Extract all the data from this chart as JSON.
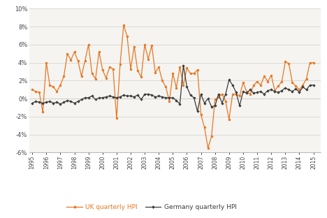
{
  "uk_hpi": [
    1.0,
    0.8,
    0.7,
    -1.5,
    4.0,
    1.5,
    1.3,
    0.8,
    1.5,
    2.5,
    5.0,
    4.3,
    5.2,
    4.2,
    2.5,
    4.2,
    6.0,
    2.8,
    2.2,
    5.2,
    3.2,
    2.3,
    3.5,
    3.3,
    -2.2,
    3.8,
    8.2,
    6.9,
    3.3,
    5.8,
    3.1,
    2.4,
    6.0,
    4.4,
    5.9,
    2.9,
    3.5,
    2.0,
    1.3,
    -0.3,
    2.8,
    1.2,
    3.5,
    1.5,
    3.4,
    2.8,
    2.8,
    3.2,
    -1.8,
    -3.2,
    -5.5,
    -4.2,
    -0.1,
    0.2,
    0.5,
    -0.3,
    -2.3,
    0.5,
    0.5,
    0.3,
    1.8,
    0.8,
    0.5,
    1.5,
    1.9,
    1.5,
    2.5,
    1.9,
    2.6,
    0.9,
    1.4,
    1.9,
    4.1,
    3.9,
    1.8,
    1.4,
    1.0,
    1.5,
    2.2,
    4.0,
    4.0
  ],
  "de_hpi": [
    -0.5,
    -0.3,
    -0.4,
    -0.5,
    -0.4,
    -0.3,
    -0.5,
    -0.4,
    -0.6,
    -0.4,
    -0.2,
    -0.3,
    -0.5,
    -0.3,
    -0.1,
    0.1,
    0.1,
    0.3,
    -0.1,
    0.1,
    0.1,
    0.2,
    0.3,
    0.2,
    0.1,
    0.2,
    0.4,
    0.3,
    0.3,
    0.2,
    0.4,
    -0.1,
    0.5,
    0.5,
    0.4,
    0.2,
    0.3,
    0.2,
    0.1,
    0.1,
    0.1,
    -0.2,
    -0.6,
    3.7,
    1.3,
    0.4,
    0.1,
    -1.4,
    0.5,
    -0.5,
    0.0,
    -0.9,
    -0.8,
    0.5,
    -0.5,
    0.5,
    2.1,
    1.5,
    0.7,
    -0.8,
    0.8,
    0.6,
    1.0,
    0.6,
    0.7,
    0.8,
    0.5,
    0.9,
    1.0,
    0.8,
    0.7,
    0.9,
    1.2,
    1.0,
    0.8,
    1.1,
    0.7,
    1.3,
    1.0,
    1.5,
    1.5
  ],
  "x_start": 1995.0,
  "x_step": 0.25,
  "x_ticks": [
    1995,
    1996,
    1997,
    1998,
    1999,
    2000,
    2001,
    2002,
    2003,
    2004,
    2005,
    2006,
    2007,
    2008,
    2009,
    2010,
    2011,
    2012,
    2013,
    2014,
    2015
  ],
  "ylim": [
    -6,
    10
  ],
  "yticks": [
    -6,
    -4,
    -2,
    0,
    2,
    4,
    6,
    8,
    10
  ],
  "uk_color": "#E87722",
  "de_color": "#3a3a3a",
  "uk_label": "UK quarterly HPI",
  "de_label": "Germany quarterly HPI",
  "plot_bg_color": "#f5f4f0",
  "fig_bg_color": "#ffffff",
  "grid_color": "#d8d6d0",
  "legend_uk_color": "#E87722",
  "legend_de_color": "#3a3a3a"
}
